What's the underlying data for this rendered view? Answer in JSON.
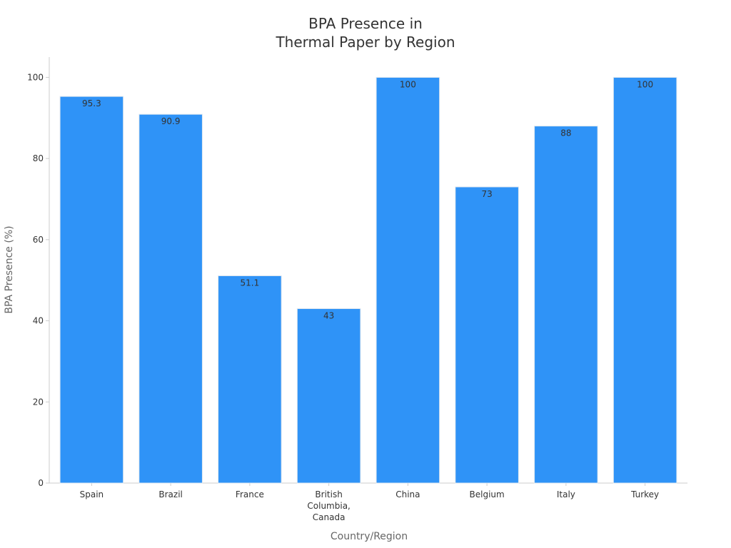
{
  "chart_data": {
    "type": "bar",
    "title_lines": [
      "BPA Presence in",
      "Thermal Paper by Region"
    ],
    "xlabel": "Country/Region",
    "ylabel": "BPA Presence (%)",
    "categories": [
      [
        "Spain"
      ],
      [
        "Brazil"
      ],
      [
        "France"
      ],
      [
        "British",
        "Columbia,",
        "Canada"
      ],
      [
        "China"
      ],
      [
        "Belgium"
      ],
      [
        "Italy"
      ],
      [
        "Turkey"
      ]
    ],
    "values": [
      95.3,
      90.9,
      51.1,
      43,
      100,
      73,
      88,
      100
    ],
    "ylim": [
      0,
      105
    ],
    "yticks": [
      0,
      20,
      40,
      60,
      80,
      100
    ],
    "bar_color": "#2f93f7",
    "grid": false,
    "legend": "none"
  }
}
